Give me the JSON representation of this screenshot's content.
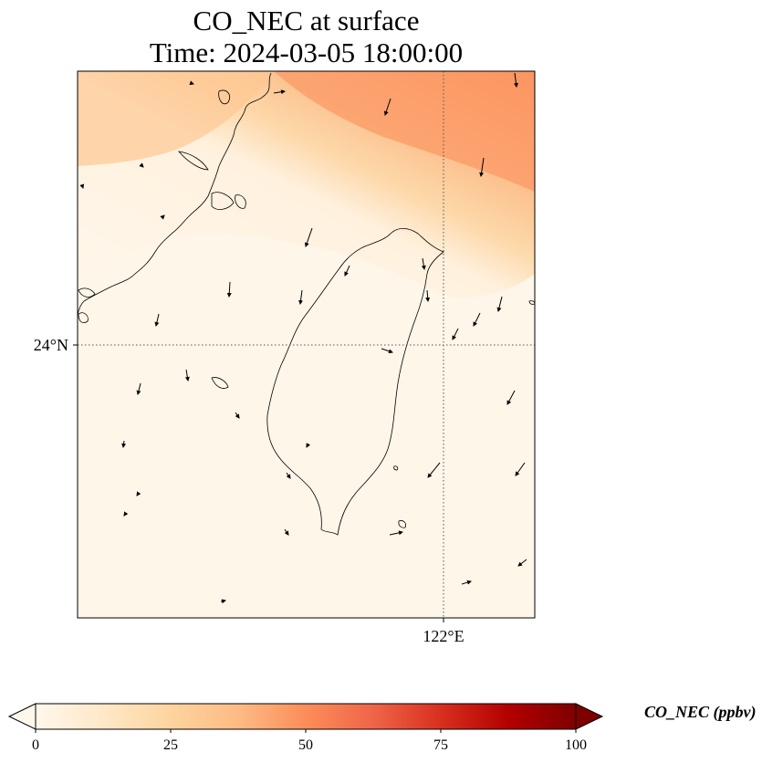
{
  "title": {
    "line1": "CO_NEC at surface",
    "line2": "Time: 2024-03-05 18:00:00"
  },
  "map": {
    "lat_label": "24°N",
    "lon_label": "122°E",
    "gridline_style": "dotted",
    "colormap": "OrRd",
    "field_high_region": "north-east (open sea, up to ~50 ppbv)",
    "field_low_region": "south and over Taiwan (~2-5 ppbv)"
  },
  "colorbar": {
    "label": "CO_NEC (ppbv)",
    "ticks": [
      "0",
      "25",
      "50",
      "75",
      "100"
    ],
    "min": 0,
    "max": 100,
    "extend": "both",
    "colors": [
      "#fff7ec",
      "#fee8c8",
      "#fdd49e",
      "#fdbb84",
      "#fc8d59",
      "#ef6548",
      "#d7301f",
      "#b30000",
      "#7f0000"
    ]
  }
}
